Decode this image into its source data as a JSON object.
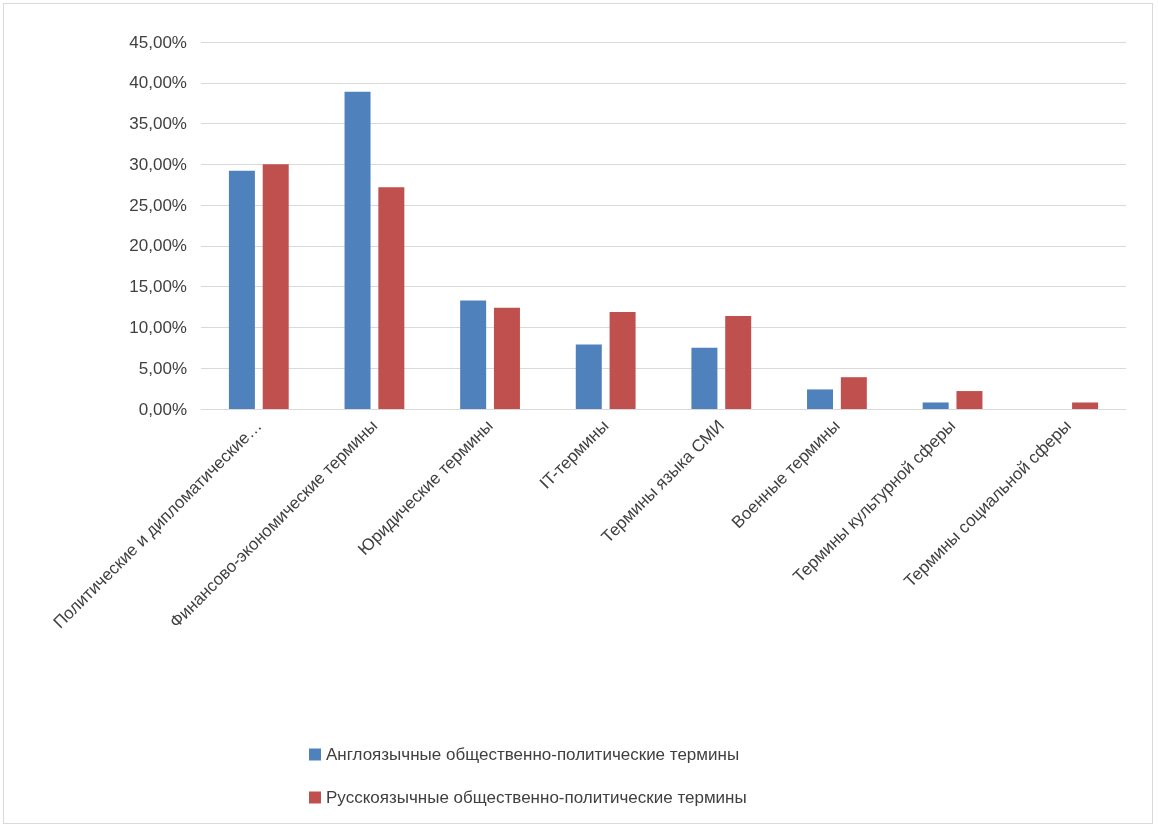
{
  "chart_data": {
    "type": "bar",
    "categories": [
      "Политические и дипломатические…",
      "Финансово-экономические термины",
      "Юридические термины",
      "IT-термины",
      "Термины языка СМИ",
      "Военные термины",
      "Термины культурной сферы",
      "Термины социальной сферы"
    ],
    "series": [
      {
        "name": "Англоязычные общественно-политические термины",
        "color": "#4f81bd",
        "values": [
          29.2,
          38.9,
          13.3,
          7.9,
          7.5,
          2.4,
          0.8,
          0
        ]
      },
      {
        "name": "Русскоязычные общественно-политические термины",
        "color": "#c0504d",
        "values": [
          30.0,
          27.2,
          12.4,
          11.9,
          11.4,
          3.9,
          2.2,
          0.8
        ]
      }
    ],
    "ylim": [
      0,
      45
    ],
    "yticks": [
      {
        "value": 0,
        "label": "0,00%"
      },
      {
        "value": 5,
        "label": "5,00%"
      },
      {
        "value": 10,
        "label": "10,00%"
      },
      {
        "value": 15,
        "label": "15,00%"
      },
      {
        "value": 20,
        "label": "20,00%"
      },
      {
        "value": 25,
        "label": "25,00%"
      },
      {
        "value": 30,
        "label": "30,00%"
      },
      {
        "value": 35,
        "label": "35,00%"
      },
      {
        "value": 40,
        "label": "40,00%"
      },
      {
        "value": 45,
        "label": "45,00%"
      }
    ],
    "grid": "y",
    "legend": "bottom"
  }
}
